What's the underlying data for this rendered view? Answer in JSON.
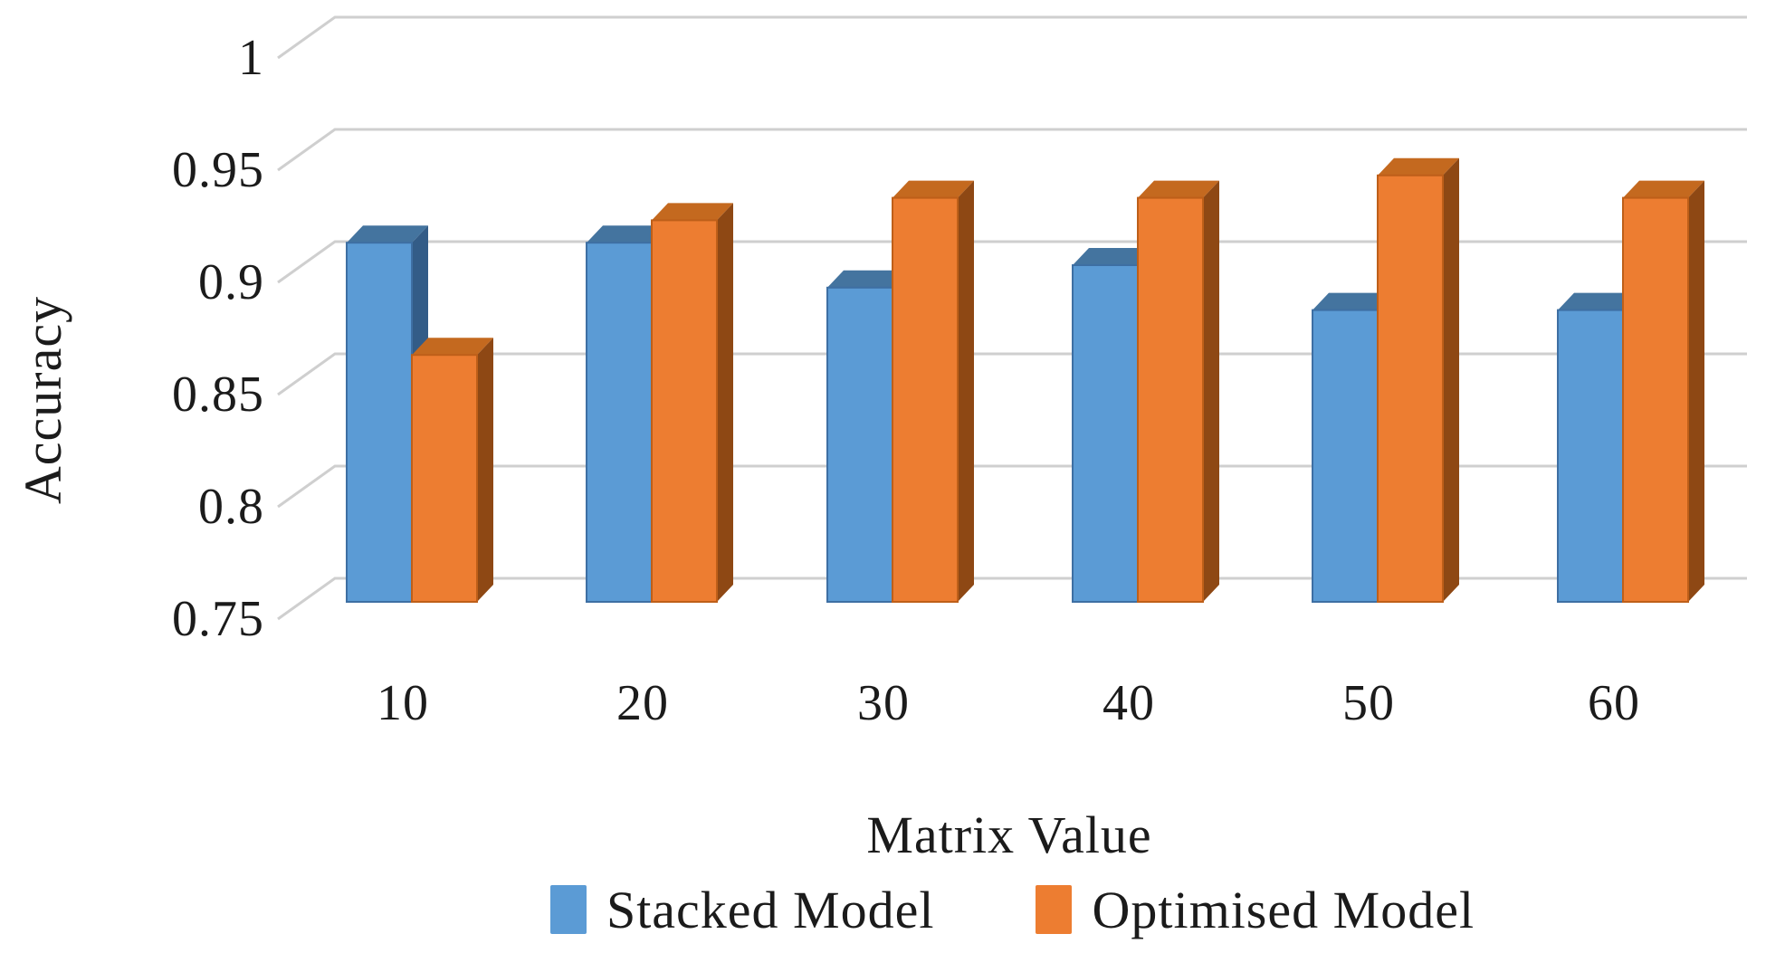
{
  "chart_data": {
    "type": "bar",
    "style": "3d-column",
    "title": "",
    "xlabel": "Matrix Value",
    "ylabel": "Accuracy",
    "categories": [
      "10",
      "20",
      "30",
      "40",
      "50",
      "60"
    ],
    "series": [
      {
        "name": "Stacked Model",
        "color": "#5B9BD5",
        "color_top": "#44749F",
        "color_side": "#335C87",
        "color_edge": "#3E6FA3",
        "values": [
          0.91,
          0.91,
          0.89,
          0.9,
          0.88,
          0.88
        ]
      },
      {
        "name": "Optimised Model",
        "color": "#ED7D31",
        "color_top": "#C4691F",
        "color_side": "#8E4814",
        "color_edge": "#BE5F19",
        "values": [
          0.86,
          0.92,
          0.93,
          0.93,
          0.94,
          0.93
        ]
      }
    ],
    "y_axis": {
      "min": 0.75,
      "max": 1.0,
      "step": 0.05,
      "tick_labels": [
        "0.75",
        "0.8",
        "0.85",
        "0.9",
        "0.95",
        "1"
      ]
    },
    "grid": true,
    "gridline_color": "#CFCFCF",
    "legend_position": "bottom-center",
    "background": "#ffffff"
  }
}
